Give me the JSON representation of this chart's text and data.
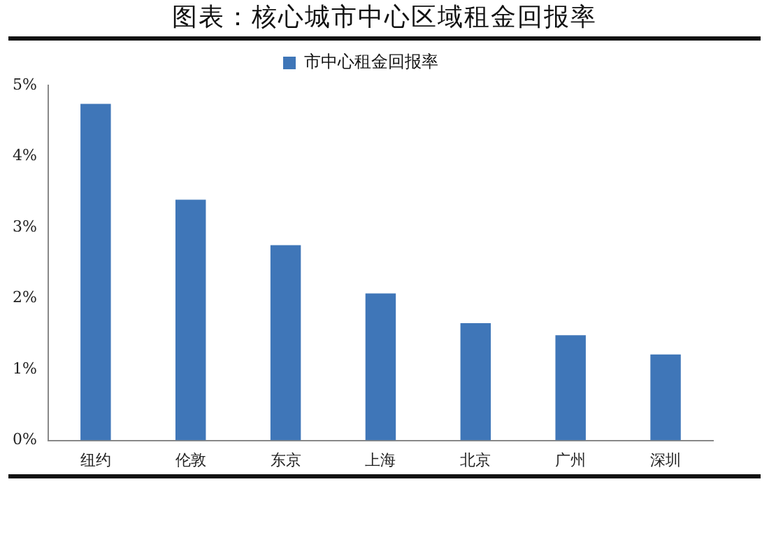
{
  "chart_data": {
    "type": "bar",
    "title": "图表：核心城市中心区域租金回报率",
    "categories": [
      "纽约",
      "伦敦",
      "东京",
      "上海",
      "北京",
      "广州",
      "深圳"
    ],
    "series": [
      {
        "name": "市中心租金回报率",
        "color": "#3f76b8",
        "values": [
          4.74,
          3.39,
          2.75,
          2.07,
          1.65,
          1.48,
          1.21
        ]
      }
    ],
    "ylim": [
      0,
      5
    ],
    "yticks": [
      {
        "value": 0,
        "label": "0%"
      },
      {
        "value": 1,
        "label": "1%"
      },
      {
        "value": 2,
        "label": "2%"
      },
      {
        "value": 3,
        "label": "3%"
      },
      {
        "value": 4,
        "label": "4%"
      },
      {
        "value": 5,
        "label": "5%"
      }
    ],
    "grid": false,
    "legend": "top"
  }
}
